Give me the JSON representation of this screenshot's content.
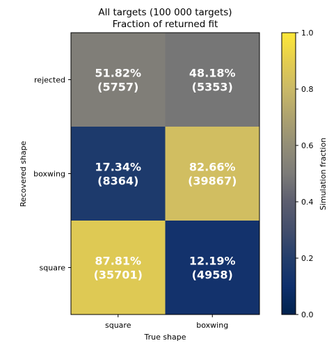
{
  "chart_data": {
    "type": "heatmap",
    "title": "All targets (100 000 targets)",
    "subtitle": "Fraction of returned fit",
    "xlabel": "True shape",
    "ylabel": "Recovered shape",
    "x_categories": [
      "square",
      "boxwing"
    ],
    "y_categories": [
      "square",
      "boxwing",
      "rejected"
    ],
    "cells": [
      {
        "x": "square",
        "y": "rejected",
        "fraction": 0.5182,
        "pct_label": "51.82%",
        "count_label": "(5757)",
        "text_color": "#ffffff"
      },
      {
        "x": "boxwing",
        "y": "rejected",
        "fraction": 0.4818,
        "pct_label": "48.18%",
        "count_label": "(5353)",
        "text_color": "#ffffff"
      },
      {
        "x": "square",
        "y": "boxwing",
        "fraction": 0.1734,
        "pct_label": "17.34%",
        "count_label": "(8364)",
        "text_color": "#ffffff"
      },
      {
        "x": "boxwing",
        "y": "boxwing",
        "fraction": 0.8266,
        "pct_label": "82.66%",
        "count_label": "(39867)",
        "text_color": "#ffffff"
      },
      {
        "x": "square",
        "y": "square",
        "fraction": 0.8781,
        "pct_label": "87.81%",
        "count_label": "(35701)",
        "text_color": "#ffffff"
      },
      {
        "x": "boxwing",
        "y": "square",
        "fraction": 0.1219,
        "pct_label": "12.19%",
        "count_label": "(4958)",
        "text_color": "#ffffff"
      }
    ],
    "colorbar": {
      "label": "Simulation fraction",
      "range": [
        0.0,
        1.0
      ],
      "ticks": [
        "0.0",
        "0.2",
        "0.4",
        "0.6",
        "0.8",
        "1.0"
      ],
      "colormap": "cividis"
    }
  }
}
